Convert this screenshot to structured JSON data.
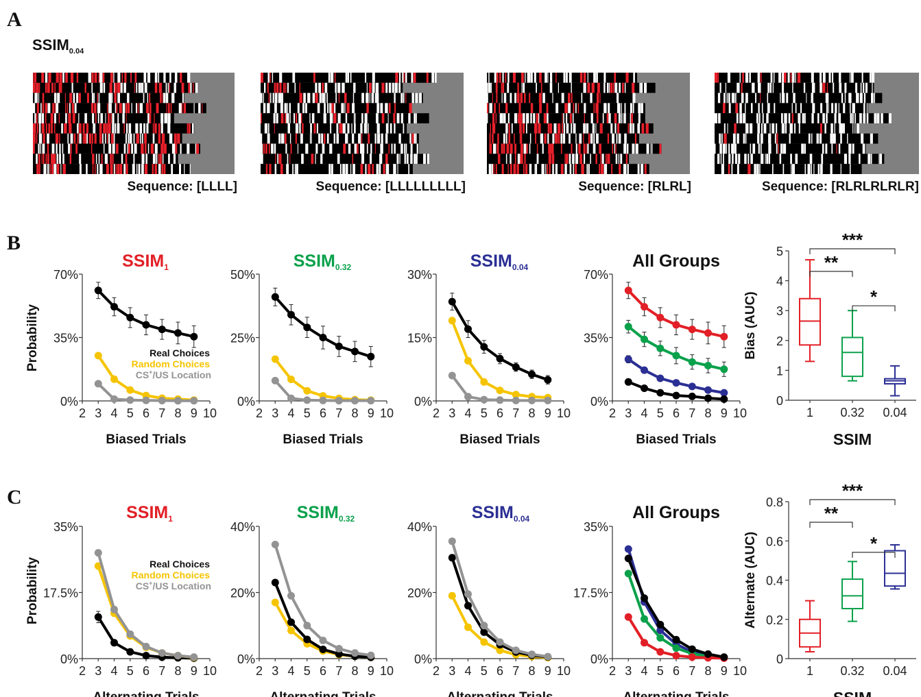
{
  "panel_labels": [
    "A",
    "B",
    "C"
  ],
  "raster_section": {
    "title_main": "SSIM",
    "title_sub": "0.04",
    "captions": [
      "Sequence: [LLLL]",
      "Sequence: [LLLLLLLLL]",
      "Sequence: [RLRL]",
      "Sequence: [RLRLRLRLR]"
    ]
  },
  "colors": {
    "real": "#000000",
    "random": "#f5c400",
    "cs": "#939393",
    "ssim1": "#e21f26",
    "ssim032": "#0aa14b",
    "ssim004": "#2b2f94",
    "raster_bg": "#808080",
    "raster_hi": "#e8202a"
  },
  "legend": {
    "real": "Real Choices",
    "random": "Random Choices",
    "cs_main": "CS",
    "cs_sup": "+",
    "cs_rest": "/US Location"
  },
  "titles": [
    {
      "main": "SSIM",
      "sub": "1"
    },
    {
      "main": "SSIM",
      "sub": "0.32"
    },
    {
      "main": "SSIM",
      "sub": "0.04"
    },
    {
      "main": "All Groups",
      "sub": ""
    }
  ],
  "ylabel": "Probability",
  "chart_data": [
    {
      "type": "line",
      "panel": "B1",
      "xlabel": "Biased Trials",
      "ylabel": "Probability",
      "xlim": [
        2,
        10
      ],
      "ylim": [
        0,
        70
      ],
      "yticks": [
        "0%",
        "35%",
        "70%"
      ],
      "xticks": [
        "2",
        "3",
        "4",
        "5",
        "6",
        "7",
        "8",
        "9",
        "10"
      ],
      "x": [
        3,
        4,
        5,
        6,
        7,
        8,
        9
      ],
      "series": [
        {
          "name": "Real Choices",
          "values": [
            61,
            52,
            46,
            42,
            39.5,
            37.5,
            35.5
          ],
          "err": [
            4.5,
            5,
            5.5,
            5.5,
            5.5,
            6,
            6
          ]
        },
        {
          "name": "Random Choices",
          "values": [
            25,
            12,
            6,
            3,
            1.5,
            1,
            0.5
          ]
        },
        {
          "name": "CS+/US Location",
          "values": [
            9.5,
            1,
            0.5,
            0.3,
            0.2,
            0.1,
            0.1
          ]
        }
      ]
    },
    {
      "type": "line",
      "panel": "B2",
      "xlabel": "Biased Trials",
      "xlim": [
        2,
        10
      ],
      "ylim": [
        0,
        50
      ],
      "yticks": [
        "0%",
        "25%",
        "50%"
      ],
      "xticks": [
        "2",
        "3",
        "4",
        "5",
        "6",
        "7",
        "8",
        "9",
        "10"
      ],
      "x": [
        3,
        4,
        5,
        6,
        7,
        8,
        9
      ],
      "series": [
        {
          "name": "Real Choices",
          "values": [
            41,
            34,
            29,
            25,
            21.5,
            19.5,
            17.5
          ],
          "err": [
            3.5,
            4,
            4,
            4.5,
            4,
            4,
            4
          ]
        },
        {
          "name": "Random Choices",
          "values": [
            16.5,
            8.5,
            4,
            2,
            1,
            0.5,
            0.3
          ]
        },
        {
          "name": "CS+/US Location",
          "values": [
            8,
            1,
            0.3,
            0.2,
            0.1,
            0.1,
            0.1
          ]
        }
      ]
    },
    {
      "type": "line",
      "panel": "B3",
      "xlabel": "Biased Trials",
      "xlim": [
        2,
        10
      ],
      "ylim": [
        0,
        30
      ],
      "yticks": [
        "0%",
        "15%",
        "30%"
      ],
      "xticks": [
        "2",
        "3",
        "4",
        "5",
        "6",
        "7",
        "8",
        "9",
        "10"
      ],
      "x": [
        3,
        4,
        5,
        6,
        7,
        8,
        9
      ],
      "series": [
        {
          "name": "Real Choices",
          "values": [
            23.5,
            17,
            12.8,
            10,
            8,
            6.3,
            5
          ],
          "err": [
            2,
            2,
            1.5,
            1.2,
            1,
            1,
            1
          ]
        },
        {
          "name": "Random Choices",
          "values": [
            19,
            9.5,
            4.5,
            2.5,
            1.5,
            1,
            0.8
          ]
        },
        {
          "name": "CS+/US Location",
          "values": [
            6,
            1,
            0.3,
            0.2,
            0.1,
            0.1,
            0.1
          ]
        }
      ]
    },
    {
      "type": "line",
      "panel": "B4",
      "xlabel": "Biased Trials",
      "xlim": [
        2,
        10
      ],
      "ylim": [
        0,
        70
      ],
      "yticks": [
        "0%",
        "35%",
        "70%"
      ],
      "xticks": [
        "2",
        "3",
        "4",
        "5",
        "6",
        "7",
        "8",
        "9",
        "10"
      ],
      "x": [
        3,
        4,
        5,
        6,
        7,
        8,
        9
      ],
      "series": [
        {
          "name": "SSIM 1",
          "values": [
            61,
            52,
            46,
            42,
            39.5,
            37.5,
            35.5
          ],
          "err": [
            4.5,
            5,
            5.5,
            5.5,
            5.5,
            6,
            6
          ]
        },
        {
          "name": "SSIM 0.32",
          "values": [
            41,
            34,
            29,
            25,
            21.5,
            19.5,
            17.5
          ],
          "err": [
            3.5,
            4,
            4,
            4.5,
            4,
            4,
            4
          ]
        },
        {
          "name": "SSIM 0.04",
          "values": [
            23,
            17,
            12.5,
            10,
            8,
            6,
            4.5
          ],
          "err": [
            2,
            1.5,
            1.5,
            1,
            1,
            1,
            1
          ]
        },
        {
          "name": "Real Choices",
          "values": [
            10.5,
            7,
            4.5,
            3,
            2.5,
            1.5,
            1
          ]
        }
      ]
    },
    {
      "type": "box",
      "panel": "B5",
      "xlabel": "SSIM",
      "ylabel": "Bias (AUC)",
      "categories": [
        "1",
        "0.32",
        "0.04"
      ],
      "ylim": [
        0,
        5
      ],
      "yticks": [
        "0",
        "1",
        "2",
        "3",
        "4",
        "5"
      ],
      "boxes": [
        {
          "min": 1.3,
          "q1": 1.85,
          "median": 2.65,
          "q3": 3.4,
          "max": 4.7
        },
        {
          "min": 0.65,
          "q1": 0.8,
          "median": 1.6,
          "q3": 2.1,
          "max": 3.0
        },
        {
          "min": 0.15,
          "q1": 0.55,
          "median": 0.65,
          "q3": 0.72,
          "max": 1.15
        }
      ],
      "significance": [
        {
          "from": "1",
          "to": "0.32",
          "label": "**"
        },
        {
          "from": "1",
          "to": "0.04",
          "label": "***"
        },
        {
          "from": "0.32",
          "to": "0.04",
          "label": "*"
        }
      ]
    },
    {
      "type": "line",
      "panel": "C1",
      "xlabel": "Alternating Trials",
      "ylabel": "Probability",
      "xlim": [
        2,
        10
      ],
      "ylim": [
        0,
        35
      ],
      "yticks": [
        "0%",
        "17.5%",
        "35%"
      ],
      "xticks": [
        "2",
        "3",
        "4",
        "5",
        "6",
        "7",
        "8",
        "9",
        "10"
      ],
      "x": [
        3,
        4,
        5,
        6,
        7,
        8,
        9
      ],
      "series": [
        {
          "name": "Real Choices",
          "values": [
            11,
            4.2,
            1.8,
            0.8,
            0.4,
            0.2,
            0.1
          ],
          "err": [
            1.5,
            0.8,
            0.5,
            0.3,
            0.2,
            0.1,
            0.1
          ]
        },
        {
          "name": "Random Choices",
          "values": [
            24.5,
            12,
            6,
            3,
            1.5,
            0.8,
            0.3
          ]
        },
        {
          "name": "CS+/US Location",
          "values": [
            28,
            13,
            6.5,
            3.2,
            1.5,
            0.8,
            0.4
          ]
        }
      ]
    },
    {
      "type": "line",
      "panel": "C2",
      "xlabel": "Alternating Trials",
      "xlim": [
        2,
        10
      ],
      "ylim": [
        0,
        40
      ],
      "yticks": [
        "0%",
        "20%",
        "40%"
      ],
      "xticks": [
        "2",
        "3",
        "4",
        "5",
        "6",
        "7",
        "8",
        "9",
        "10"
      ],
      "x": [
        3,
        4,
        5,
        6,
        7,
        8,
        9
      ],
      "series": [
        {
          "name": "Random Choices",
          "values": [
            17,
            8.5,
            4.5,
            2.3,
            1.2,
            0.7,
            0.4
          ]
        },
        {
          "name": "Real Choices",
          "values": [
            23,
            11,
            5.8,
            2.8,
            1.4,
            0.7,
            0.4
          ]
        },
        {
          "name": "CS+/US Location",
          "values": [
            34.5,
            19,
            10,
            5.5,
            3,
            1.7,
            1
          ]
        }
      ]
    },
    {
      "type": "line",
      "panel": "C3",
      "xlabel": "Alternating Trials",
      "xlim": [
        2,
        10
      ],
      "ylim": [
        0,
        40
      ],
      "yticks": [
        "0%",
        "20%",
        "40%"
      ],
      "xticks": [
        "2",
        "3",
        "4",
        "5",
        "6",
        "7",
        "8",
        "9",
        "10"
      ],
      "x": [
        3,
        4,
        5,
        6,
        7,
        8,
        9
      ],
      "series": [
        {
          "name": "Random Choices",
          "values": [
            19,
            9.5,
            5,
            2.5,
            1.2,
            0.6,
            0.3
          ]
        },
        {
          "name": "Real Choices",
          "values": [
            30.5,
            16,
            8,
            4.2,
            2,
            1,
            0.5
          ]
        },
        {
          "name": "CS+/US Location",
          "values": [
            35.5,
            19.5,
            10,
            5,
            2.5,
            1.3,
            0.6
          ]
        }
      ]
    },
    {
      "type": "line",
      "panel": "C4",
      "xlabel": "Alternating Trials",
      "xlim": [
        2,
        10
      ],
      "ylim": [
        0,
        35
      ],
      "yticks": [
        "0%",
        "17.5%",
        "35%"
      ],
      "xticks": [
        "2",
        "3",
        "4",
        "5",
        "6",
        "7",
        "8",
        "9",
        "10"
      ],
      "x": [
        3,
        4,
        5,
        6,
        7,
        8,
        9
      ],
      "series": [
        {
          "name": "SSIM 0.04",
          "values": [
            29,
            15,
            7.5,
            3.8,
            1.8,
            0.8,
            0.3
          ]
        },
        {
          "name": "SSIM 0.32",
          "values": [
            22.5,
            10.5,
            5.5,
            2.8,
            1.3,
            0.6,
            0.3
          ]
        },
        {
          "name": "SSIM 1",
          "values": [
            11,
            4.2,
            1.8,
            0.8,
            0.4,
            0.2,
            0.1
          ]
        },
        {
          "name": "Real Choices",
          "values": [
            26.5,
            16,
            9,
            5,
            2.5,
            1.2,
            0.4
          ]
        }
      ]
    },
    {
      "type": "box",
      "panel": "C5",
      "xlabel": "SSIM",
      "ylabel": "Alternate (AUC)",
      "categories": [
        "1",
        "0.32",
        "0.04"
      ],
      "ylim": [
        0,
        0.8
      ],
      "yticks": [
        "0",
        "0.2",
        "0.4",
        "0.6",
        "0.8"
      ],
      "boxes": [
        {
          "min": 0.035,
          "q1": 0.06,
          "median": 0.13,
          "q3": 0.2,
          "max": 0.295
        },
        {
          "min": 0.19,
          "q1": 0.255,
          "median": 0.32,
          "q3": 0.405,
          "max": 0.495
        },
        {
          "min": 0.355,
          "q1": 0.37,
          "median": 0.435,
          "q3": 0.55,
          "max": 0.58
        }
      ],
      "significance": [
        {
          "from": "1",
          "to": "0.32",
          "label": "**"
        },
        {
          "from": "1",
          "to": "0.04",
          "label": "***"
        },
        {
          "from": "0.32",
          "to": "0.04",
          "label": "*"
        }
      ]
    }
  ]
}
